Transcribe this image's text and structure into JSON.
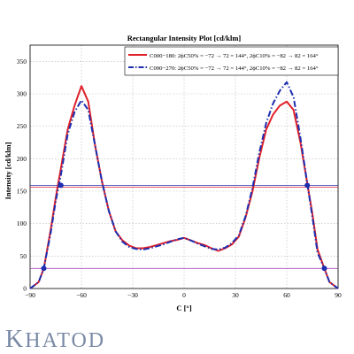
{
  "chart_data": {
    "type": "line",
    "title": "Rectangular Intensity Plot [cd/klm]",
    "xlabel": "C [°]",
    "ylabel": "Intensity [cd/klm]",
    "xlim": [
      -90,
      90
    ],
    "ylim": [
      0,
      375
    ],
    "xticks": [
      -90,
      -60,
      -30,
      0,
      30,
      60,
      90
    ],
    "yticks": [
      0,
      50,
      100,
      150,
      200,
      250,
      300,
      350
    ],
    "grid": true,
    "legend_position": "top-right",
    "series": [
      {
        "name": "C000−180: 2ϕC50% = −72 → 72 = 144°, 2ϕC10% = −82 → 82 = 164°",
        "color": "#e0202a",
        "style": "solid",
        "x": [
          -90,
          -85,
          -82,
          -78,
          -75,
          -72,
          -68,
          -64,
          -60,
          -56,
          -52,
          -48,
          -44,
          -40,
          -36,
          -32,
          -28,
          -24,
          -20,
          -16,
          -12,
          -8,
          -4,
          0,
          4,
          8,
          12,
          16,
          20,
          24,
          28,
          32,
          36,
          40,
          44,
          48,
          52,
          56,
          60,
          64,
          68,
          72,
          75,
          78,
          82,
          85,
          90
        ],
        "y": [
          0,
          10,
          31,
          90,
          140,
          185,
          245,
          282,
          312,
          288,
          220,
          165,
          120,
          88,
          74,
          66,
          62,
          62,
          64,
          67,
          70,
          73,
          75,
          78,
          74,
          70,
          67,
          62,
          58,
          62,
          68,
          80,
          110,
          150,
          202,
          245,
          268,
          282,
          288,
          275,
          225,
          162,
          115,
          60,
          31,
          10,
          0
        ]
      },
      {
        "name": "C090−270: 2ϕC50% = −72 → 72 = 144°, 2ϕC10% = −82 → 82 = 164°",
        "color": "#1e2fb0",
        "style": "dashdot",
        "x": [
          -90,
          -85,
          -82,
          -78,
          -75,
          -72,
          -68,
          -64,
          -60,
          -56,
          -52,
          -48,
          -44,
          -40,
          -36,
          -32,
          -28,
          -24,
          -20,
          -16,
          -12,
          -8,
          -4,
          0,
          4,
          8,
          12,
          16,
          20,
          24,
          28,
          32,
          36,
          40,
          44,
          48,
          52,
          56,
          60,
          64,
          68,
          72,
          75,
          78,
          82,
          85,
          90
        ],
        "y": [
          0,
          10,
          31,
          85,
          135,
          175,
          238,
          272,
          290,
          275,
          220,
          165,
          120,
          88,
          72,
          64,
          61,
          60,
          62,
          65,
          68,
          72,
          76,
          78,
          74,
          69,
          65,
          61,
          60,
          63,
          70,
          82,
          112,
          155,
          210,
          255,
          285,
          305,
          318,
          295,
          232,
          162,
          110,
          55,
          31,
          10,
          0
        ]
      }
    ],
    "reference_lines": [
      {
        "color": "#e0202a",
        "y": 156
      },
      {
        "color": "#1e2fb0",
        "y": 159
      },
      {
        "color": "#9a2fb0",
        "y": 31
      }
    ],
    "markers": [
      {
        "x": -72,
        "y": 159,
        "color": "#1e2fb0"
      },
      {
        "x": 72,
        "y": 159,
        "color": "#1e2fb0"
      },
      {
        "x": -82,
        "y": 31,
        "color": "#1e2fb0"
      },
      {
        "x": 82,
        "y": 31,
        "color": "#1e2fb0"
      }
    ]
  },
  "brand": {
    "first_letter": "K",
    "rest": "HATOD"
  }
}
